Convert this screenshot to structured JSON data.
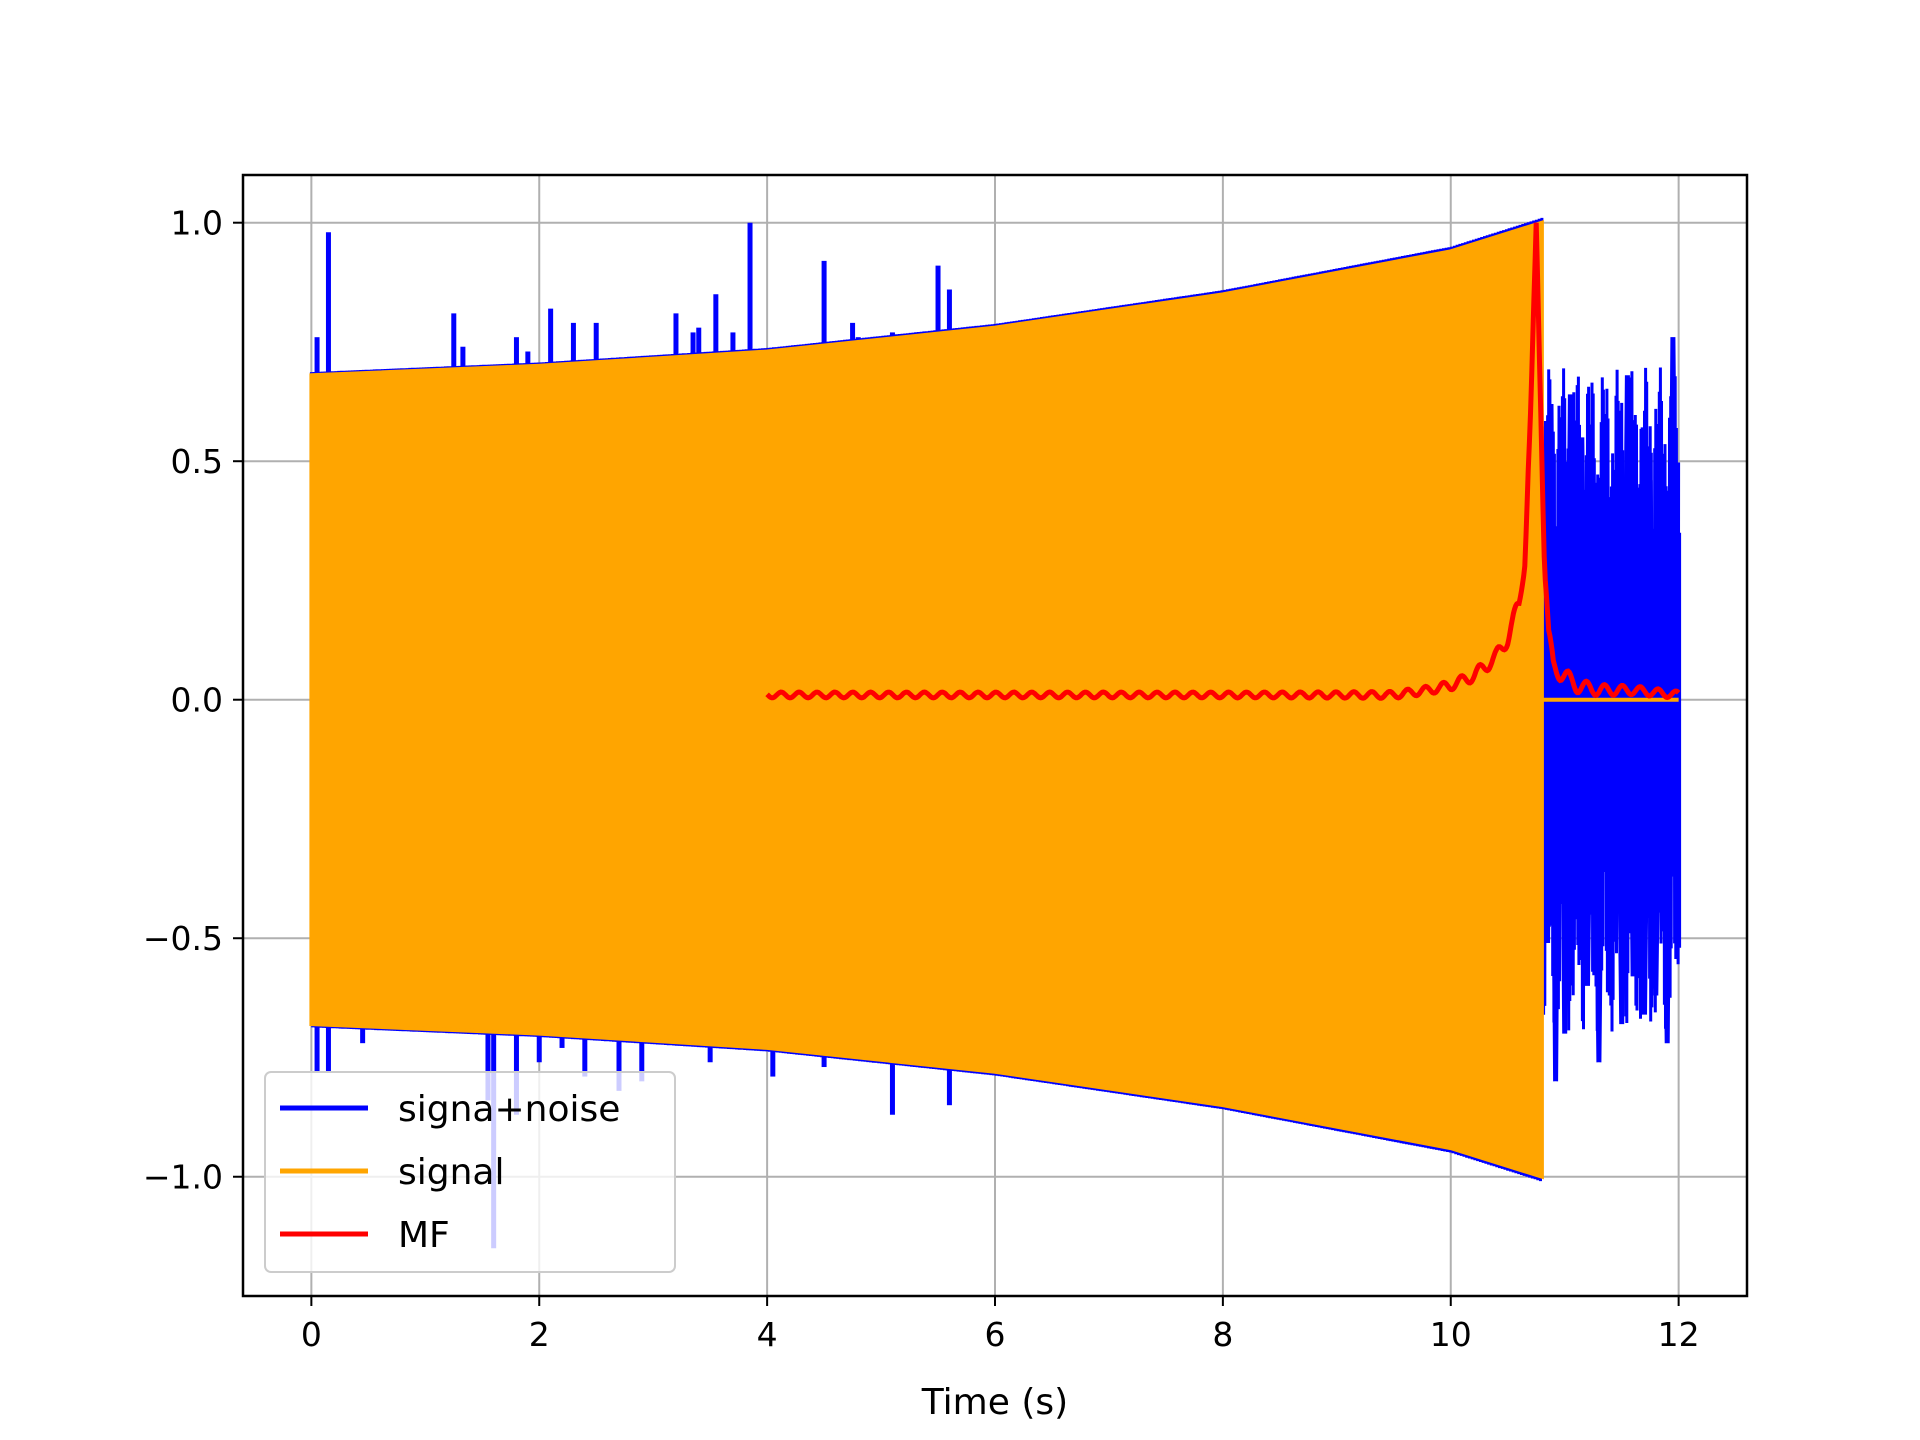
{
  "chart_data": {
    "type": "line",
    "title": "",
    "xlabel": "Time (s)",
    "ylabel": "",
    "xlim": [
      -0.6,
      12.6
    ],
    "ylim": [
      -1.25,
      1.1
    ],
    "xticks": [
      0,
      2,
      4,
      6,
      8,
      10,
      12
    ],
    "yticks": [
      1.0,
      0.5,
      0.0,
      -0.5,
      -1.0
    ],
    "xtick_labels": [
      "0",
      "2",
      "4",
      "6",
      "8",
      "10",
      "12"
    ],
    "ytick_labels": [
      "1.0",
      "0.5",
      "0.0",
      "−0.5",
      "−1.0"
    ],
    "grid": true,
    "legend_position": "lower-left",
    "series": [
      {
        "name": "signa+noise",
        "color": "#0000ff",
        "envelope_upper": [
          [
            0,
            0.68
          ],
          [
            2,
            0.7
          ],
          [
            4,
            0.73
          ],
          [
            6,
            0.78
          ],
          [
            8,
            0.85
          ],
          [
            10,
            0.94
          ],
          [
            10.8,
            1.0
          ]
        ],
        "envelope_lower": [
          [
            0,
            -0.68
          ],
          [
            2,
            -0.7
          ],
          [
            4,
            -0.73
          ],
          [
            6,
            -0.78
          ],
          [
            8,
            -0.85
          ],
          [
            10,
            -0.94
          ],
          [
            10.8,
            -1.0
          ]
        ],
        "spikes_up": [
          [
            0.05,
            0.76
          ],
          [
            0.15,
            0.98
          ],
          [
            0.45,
            0.69
          ],
          [
            1.25,
            0.81
          ],
          [
            1.33,
            0.74
          ],
          [
            1.8,
            0.76
          ],
          [
            1.9,
            0.73
          ],
          [
            2.1,
            0.82
          ],
          [
            2.3,
            0.79
          ],
          [
            2.5,
            0.79
          ],
          [
            3.2,
            0.81
          ],
          [
            3.35,
            0.77
          ],
          [
            3.4,
            0.78
          ],
          [
            3.55,
            0.85
          ],
          [
            3.7,
            0.77
          ],
          [
            3.85,
            1.0
          ],
          [
            4.5,
            0.92
          ],
          [
            4.75,
            0.79
          ],
          [
            4.8,
            0.76
          ],
          [
            5.1,
            0.77
          ],
          [
            5.5,
            0.91
          ],
          [
            5.6,
            0.86
          ]
        ],
        "spikes_down": [
          [
            0.05,
            -0.78
          ],
          [
            0.15,
            -0.78
          ],
          [
            0.45,
            -0.72
          ],
          [
            1.55,
            -0.84
          ],
          [
            1.6,
            -1.15
          ],
          [
            1.8,
            -0.87
          ],
          [
            2.0,
            -0.76
          ],
          [
            2.2,
            -0.73
          ],
          [
            2.4,
            -0.79
          ],
          [
            2.7,
            -0.82
          ],
          [
            2.9,
            -0.8
          ],
          [
            3.5,
            -0.76
          ],
          [
            4.05,
            -0.79
          ],
          [
            4.5,
            -0.77
          ],
          [
            5.1,
            -0.87
          ],
          [
            5.6,
            -0.85
          ]
        ],
        "tail": [
          [
            10.8,
            0.28
          ],
          [
            10.85,
            -0.51
          ],
          [
            10.88,
            0.62
          ],
          [
            10.92,
            -0.8
          ],
          [
            10.96,
            0.57
          ],
          [
            11.0,
            -0.7
          ],
          [
            11.05,
            0.64
          ],
          [
            11.1,
            -0.46
          ],
          [
            11.15,
            0.55
          ],
          [
            11.2,
            -0.6
          ],
          [
            11.25,
            0.36
          ],
          [
            11.3,
            -0.76
          ],
          [
            11.35,
            0.42
          ],
          [
            11.4,
            -0.62
          ],
          [
            11.45,
            0.43
          ],
          [
            11.5,
            -0.68
          ],
          [
            11.55,
            0.68
          ],
          [
            11.6,
            -0.58
          ],
          [
            11.65,
            0.42
          ],
          [
            11.7,
            -0.66
          ],
          [
            11.75,
            0.46
          ],
          [
            11.8,
            -0.62
          ],
          [
            11.85,
            0.32
          ],
          [
            11.9,
            -0.72
          ],
          [
            11.95,
            0.76
          ],
          [
            12.0,
            -0.52
          ],
          [
            12.0,
            0.35
          ]
        ]
      },
      {
        "name": "signal",
        "color": "#ffa500",
        "envelope_upper": [
          [
            0,
            0.68
          ],
          [
            2,
            0.7
          ],
          [
            4,
            0.73
          ],
          [
            6,
            0.78
          ],
          [
            8,
            0.85
          ],
          [
            10,
            0.94
          ],
          [
            10.8,
            1.0
          ]
        ],
        "envelope_lower": [
          [
            0,
            -0.68
          ],
          [
            2,
            -0.7
          ],
          [
            4,
            -0.73
          ],
          [
            6,
            -0.78
          ],
          [
            8,
            -0.85
          ],
          [
            10,
            -0.94
          ],
          [
            10.8,
            -1.0
          ]
        ],
        "flat_after": [
          [
            10.8,
            0.0
          ],
          [
            12.0,
            0.0
          ]
        ]
      },
      {
        "name": "MF",
        "color": "#ff0000",
        "x": [
          4.0,
          4.5,
          5.0,
          5.5,
          6.0,
          6.5,
          7.0,
          7.5,
          8.0,
          8.5,
          9.0,
          9.5,
          9.8,
          10.0,
          10.2,
          10.4,
          10.5,
          10.6,
          10.65,
          10.7,
          10.75,
          10.78,
          10.82,
          10.86,
          10.9,
          11.0,
          11.1,
          11.3,
          11.6,
          12.0
        ],
        "values": [
          0.01,
          0.01,
          0.01,
          0.01,
          0.01,
          0.01,
          0.01,
          0.01,
          0.01,
          0.01,
          0.01,
          0.01,
          0.02,
          0.03,
          0.05,
          0.09,
          0.13,
          0.2,
          0.3,
          0.6,
          1.0,
          0.7,
          0.3,
          0.13,
          0.07,
          0.05,
          0.03,
          0.02,
          0.02,
          0.01
        ]
      }
    ]
  }
}
